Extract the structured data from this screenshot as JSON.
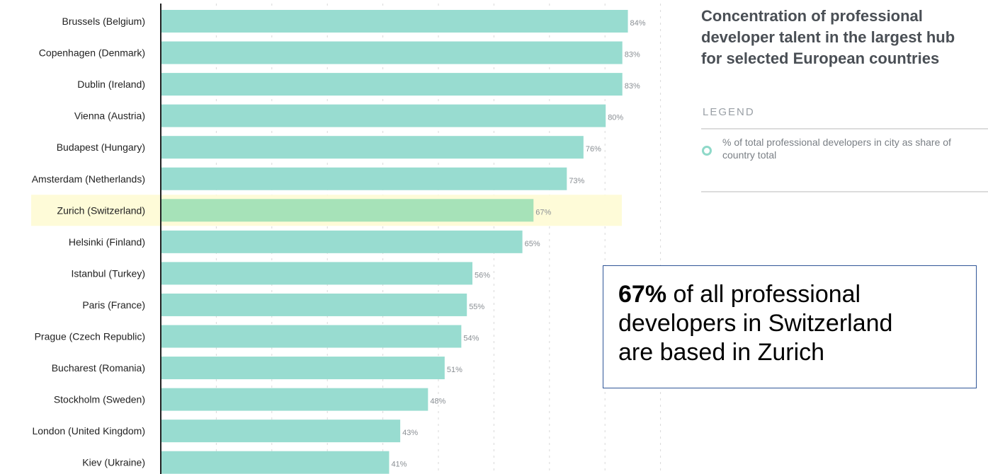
{
  "chart_data": {
    "type": "bar",
    "orientation": "horizontal",
    "title": "Concentration of professional developer talent in the largest hub for selected European countries",
    "categories": [
      "Brussels (Belgium)",
      "Copenhagen (Denmark)",
      "Dublin (Ireland)",
      "Vienna (Austria)",
      "Budapest (Hungary)",
      "Amsterdam (Netherlands)",
      "Zurich (Switzerland)",
      "Helsinki (Finland)",
      "Istanbul (Turkey)",
      "Paris (France)",
      "Prague (Czech Republic)",
      "Bucharest (Romania)",
      "Stockholm (Sweden)",
      "London (United Kingdom)",
      "Kiev (Ukraine)"
    ],
    "values": [
      84,
      83,
      83,
      80,
      76,
      73,
      67,
      65,
      56,
      55,
      54,
      51,
      48,
      43,
      41
    ],
    "value_labels": [
      "84%",
      "83%",
      "83%",
      "80%",
      "76%",
      "73%",
      "67%",
      "65%",
      "56%",
      "55%",
      "54%",
      "51%",
      "48%",
      "43%",
      "41%"
    ],
    "highlighted_category": "Zurich (Switzerland)",
    "xlim": [
      0,
      100
    ],
    "grid": true,
    "legend": {
      "heading": "LEGEND",
      "entries": [
        "% of total professional developers in city as share of country total"
      ],
      "placement": "right"
    },
    "colors": {
      "bar": "#98dcd0",
      "bar_highlight": "#a6e2b8",
      "highlight_band": "#fefbd8",
      "axis": "#222222",
      "grid": "#d9d9d9"
    }
  },
  "callout": {
    "bold": "67%",
    "text_line1": " of all professional",
    "text_line2": "developers in Switzerland",
    "text_line3": "are based in Zurich"
  }
}
